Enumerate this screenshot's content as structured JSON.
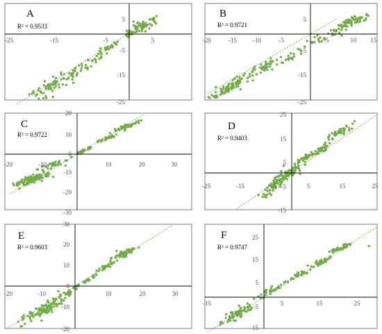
{
  "figure": {
    "point_color": "#70AD47",
    "trend_color": "#70AD47",
    "panels": [
      {
        "id": "A",
        "letter": "A",
        "r2": "R² = 0.9533",
        "xticks": [
          "-25",
          "-15",
          "-5",
          "5"
        ],
        "yticks": [
          "5",
          "-5",
          "-15",
          "-25"
        ]
      },
      {
        "id": "B",
        "letter": "B",
        "r2": "R² = 0.9721",
        "xticks": [
          "-20",
          "-15",
          "-10",
          "-5",
          "5",
          "10",
          "15"
        ],
        "yticks": [
          "5",
          "-5",
          "-15",
          "-25"
        ]
      },
      {
        "id": "C",
        "letter": "C",
        "r2": "R² = 0.9722",
        "xticks": [
          "-20",
          "-10",
          "10",
          "20",
          "30"
        ],
        "yticks": [
          "20",
          "10",
          "0",
          "-10",
          "-20",
          "-30"
        ]
      },
      {
        "id": "D",
        "letter": "D",
        "r2": "R² = 0.9403",
        "xticks": [
          "-25",
          "-15",
          "-5",
          "5",
          "15",
          "25"
        ],
        "yticks": [
          "25",
          "15",
          "5",
          "-5",
          "-15"
        ]
      },
      {
        "id": "E",
        "letter": "E",
        "r2": "R² = 0.9603",
        "xticks": [
          "-20",
          "-10",
          "10",
          "20",
          "30"
        ],
        "yticks": [
          "30",
          "20",
          "10",
          "0",
          "-10",
          "-20"
        ]
      },
      {
        "id": "F",
        "letter": "F",
        "r2": "R² = 0.9747",
        "xticks": [
          "-15",
          "5",
          "15",
          "25"
        ],
        "yticks": [
          "25",
          "15",
          "5",
          "-5",
          "-15"
        ]
      }
    ]
  },
  "chart_data": [
    {
      "type": "scatter",
      "panel": "A",
      "r2": 0.9533,
      "xlim": [
        -25,
        5
      ],
      "ylim": [
        -25,
        5
      ],
      "trendline": {
        "slope": 0.95,
        "intercept": 0.3
      },
      "clusters": [
        {
          "x": 2,
          "y": 2,
          "sx": 2,
          "sy": 1.8,
          "n": 70
        },
        {
          "x": -5,
          "y": -5,
          "sx": 1.5,
          "sy": 1.5,
          "n": 25
        },
        {
          "x": -10,
          "y": -11,
          "sx": 2,
          "sy": 2,
          "n": 30
        },
        {
          "x": -17,
          "y": -17,
          "sx": 2.8,
          "sy": 2.5,
          "n": 70
        }
      ]
    },
    {
      "type": "scatter",
      "panel": "B",
      "r2": 0.9721,
      "xlim": [
        -20,
        15
      ],
      "ylim": [
        -25,
        5
      ],
      "trendline": {
        "slope": 1.0,
        "intercept": 0.0
      },
      "clusters": [
        {
          "x": 8,
          "y": 4,
          "sx": 2,
          "sy": 1.5,
          "n": 60
        },
        {
          "x": 3,
          "y": -1,
          "sx": 2,
          "sy": 1.5,
          "n": 30
        },
        {
          "x": -3,
          "y": -7,
          "sx": 1.5,
          "sy": 1.5,
          "n": 15
        },
        {
          "x": -9,
          "y": -11,
          "sx": 2,
          "sy": 2,
          "n": 45
        },
        {
          "x": -16,
          "y": -18,
          "sx": 1.8,
          "sy": 2,
          "n": 80
        }
      ]
    },
    {
      "type": "scatter",
      "panel": "C",
      "r2": 0.9722,
      "xlim": [
        -20,
        30
      ],
      "ylim": [
        -30,
        20
      ],
      "trendline": {
        "slope": 1.0,
        "intercept": 0.0
      },
      "clusters": [
        {
          "x": 15,
          "y": 14,
          "sx": 1.8,
          "sy": 1.2,
          "n": 50
        },
        {
          "x": 9,
          "y": 8,
          "sx": 1.5,
          "sy": 1,
          "n": 25
        },
        {
          "x": 2,
          "y": 2,
          "sx": 1.2,
          "sy": 1,
          "n": 25
        },
        {
          "x": -7,
          "y": -5,
          "sx": 2.5,
          "sy": 1.5,
          "n": 30
        },
        {
          "x": -14,
          "y": -13,
          "sx": 3,
          "sy": 2,
          "n": 90
        }
      ]
    },
    {
      "type": "scatter",
      "panel": "D",
      "r2": 0.9403,
      "xlim": [
        -25,
        25
      ],
      "ylim": [
        -15,
        25
      ],
      "trendline": {
        "slope": 0.95,
        "intercept": 0.5
      },
      "clusters": [
        {
          "x": 14,
          "y": 17,
          "sx": 1.8,
          "sy": 1.5,
          "n": 45
        },
        {
          "x": 9,
          "y": 10,
          "sx": 1.5,
          "sy": 1.5,
          "n": 30
        },
        {
          "x": 4,
          "y": 6,
          "sx": 1.5,
          "sy": 1.5,
          "n": 35
        },
        {
          "x": -1,
          "y": 0,
          "sx": 2,
          "sy": 2,
          "n": 50
        },
        {
          "x": -5,
          "y": -5,
          "sx": 2.2,
          "sy": 3,
          "n": 60
        }
      ]
    },
    {
      "type": "scatter",
      "panel": "E",
      "r2": 0.9603,
      "xlim": [
        -20,
        30
      ],
      "ylim": [
        -20,
        30
      ],
      "trendline": {
        "slope": 1.0,
        "intercept": 0.0
      },
      "clusters": [
        {
          "x": 15,
          "y": 16,
          "sx": 2,
          "sy": 1.5,
          "n": 50
        },
        {
          "x": 10,
          "y": 10,
          "sx": 1.5,
          "sy": 1.2,
          "n": 25
        },
        {
          "x": 5,
          "y": 4,
          "sx": 1.2,
          "sy": 1,
          "n": 15
        },
        {
          "x": -2,
          "y": -3,
          "sx": 1.5,
          "sy": 1.5,
          "n": 25
        },
        {
          "x": -9,
          "y": -11,
          "sx": 3,
          "sy": 3,
          "n": 110
        }
      ]
    },
    {
      "type": "scatter",
      "panel": "F",
      "r2": 0.9747,
      "xlim": [
        -15,
        30
      ],
      "ylim": [
        -15,
        30
      ],
      "trendline": {
        "slope": 1.0,
        "intercept": 0.0
      },
      "clusters": [
        {
          "x": 20,
          "y": 21,
          "sx": 1.5,
          "sy": 1,
          "n": 35
        },
        {
          "x": 15,
          "y": 15,
          "sx": 1.8,
          "sy": 1.5,
          "n": 35
        },
        {
          "x": 9,
          "y": 9,
          "sx": 1.5,
          "sy": 1.2,
          "n": 25
        },
        {
          "x": 1,
          "y": 2,
          "sx": 1.8,
          "sy": 1.5,
          "n": 30
        },
        {
          "x": -7,
          "y": -7,
          "sx": 2.2,
          "sy": 2.5,
          "n": 70
        }
      ],
      "extra_points": [
        [
          28,
          22
        ]
      ]
    }
  ]
}
